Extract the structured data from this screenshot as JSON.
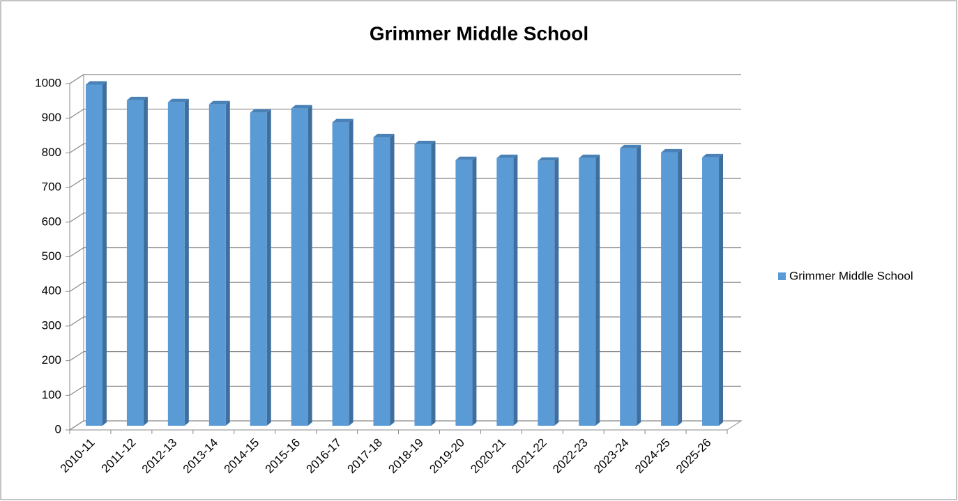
{
  "chart_data": {
    "type": "bar",
    "title": "Grimmer Middle School",
    "categories": [
      "2010-11",
      "2011-12",
      "2012-13",
      "2013-14",
      "2014-15",
      "2015-16",
      "2016-17",
      "2017-18",
      "2018-19",
      "2019-20",
      "2020-21",
      "2021-22",
      "2022-23",
      "2023-24",
      "2024-25",
      "2025-26"
    ],
    "series": [
      {
        "name": "Grimmer Middle School",
        "color": "#5b9bd5",
        "values": [
          985,
          940,
          934,
          928,
          904,
          916,
          876,
          833,
          813,
          767,
          773,
          765,
          773,
          801,
          789,
          775
        ]
      }
    ],
    "ylim": [
      0,
      1000
    ],
    "yticks": [
      0,
      100,
      200,
      300,
      400,
      500,
      600,
      700,
      800,
      900,
      1000
    ],
    "grid": true,
    "legend": "right"
  }
}
